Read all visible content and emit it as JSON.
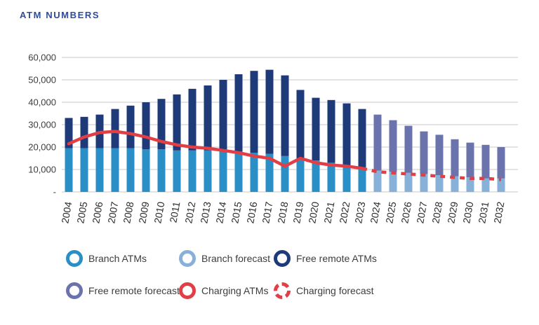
{
  "title": "ATM NUMBERS",
  "colors": {
    "title": "#2e4c9c",
    "branch_actual": "#2a8fc7",
    "branch_forecast": "#87b1d9",
    "free_remote_actual": "#1e3a78",
    "free_remote_forecast": "#6a73ac",
    "charging": "#e13e46",
    "gridline": "#c9c9c9",
    "axis_text": "#3c3c3c"
  },
  "chart_data": {
    "type": "bar",
    "stacked": true,
    "grid": true,
    "title": "ATM NUMBERS",
    "xlabel": "",
    "ylabel": "",
    "ylim": [
      0,
      60000
    ],
    "forecast_start_index": 20,
    "categories": [
      "2004",
      "2005",
      "2006",
      "2007",
      "2008",
      "2009",
      "2010",
      "2011",
      "2012",
      "2013",
      "2014",
      "2015",
      "2016",
      "2017",
      "2018",
      "2019",
      "2020",
      "2021",
      "2022",
      "2023",
      "2024",
      "2025",
      "2026",
      "2027",
      "2028",
      "2029",
      "2030",
      "2031",
      "2032"
    ],
    "y_ticks": [
      {
        "value": 60000,
        "label": "60,000"
      },
      {
        "value": 50000,
        "label": "50,000"
      },
      {
        "value": 40000,
        "label": "40,000"
      },
      {
        "value": 30000,
        "label": "30,000"
      },
      {
        "value": 20000,
        "label": "20,000"
      },
      {
        "value": 10000,
        "label": "10,000"
      },
      {
        "value": 0,
        "label": "-"
      }
    ],
    "series": [
      {
        "name": "Branch ATMs",
        "type": "bar",
        "color": "#2a8fc7",
        "start_index": 0,
        "values": [
          19500,
          19500,
          19500,
          19500,
          19500,
          19000,
          19000,
          18500,
          18500,
          18500,
          18500,
          18000,
          17500,
          17000,
          16000,
          15000,
          14000,
          13000,
          12000,
          11000
        ]
      },
      {
        "name": "Branch forecast",
        "type": "bar",
        "color": "#87b1d9",
        "start_index": 20,
        "values": [
          9500,
          9000,
          8500,
          8000,
          7500,
          7000,
          6500,
          6000,
          6000
        ]
      },
      {
        "name": "Free remote ATMs",
        "type": "bar",
        "color": "#1e3a78",
        "start_index": 0,
        "values": [
          13500,
          14000,
          15000,
          17500,
          19000,
          21000,
          22500,
          25000,
          27500,
          29000,
          31500,
          34500,
          36500,
          37500,
          36000,
          30500,
          28000,
          28000,
          27500,
          26000
        ]
      },
      {
        "name": "Free remote forecast",
        "type": "bar",
        "color": "#6a73ac",
        "start_index": 20,
        "values": [
          25000,
          23000,
          21000,
          19000,
          18000,
          16500,
          15500,
          15000,
          14000
        ]
      },
      {
        "name": "Charging ATMs",
        "type": "line",
        "color": "#e13e46",
        "start_index": 0,
        "values": [
          21500,
          24500,
          26500,
          27000,
          26000,
          24500,
          22500,
          21000,
          20000,
          19500,
          18500,
          17500,
          16000,
          15000,
          11500,
          15000,
          13000,
          12000,
          11500,
          10500
        ]
      },
      {
        "name": "Charging forecast",
        "type": "line-dashed",
        "color": "#e13e46",
        "start_index": 20,
        "values": [
          9000,
          8500,
          8000,
          7500,
          7000,
          6500,
          6000,
          6000,
          5500
        ]
      }
    ],
    "legend_position": "bottom"
  },
  "legend": {
    "items": [
      {
        "label": "Branch ATMs",
        "color": "#2a8fc7",
        "dashed": false
      },
      {
        "label": "Branch forecast",
        "color": "#87b1d9",
        "dashed": false
      },
      {
        "label": "Free remote ATMs",
        "color": "#1e3a78",
        "dashed": false
      },
      {
        "label": "Free remote forecast",
        "color": "#6a73ac",
        "dashed": false
      },
      {
        "label": "Charging ATMs",
        "color": "#e13e46",
        "dashed": false
      },
      {
        "label": "Charging forecast",
        "color": "#e13e46",
        "dashed": true
      }
    ]
  }
}
